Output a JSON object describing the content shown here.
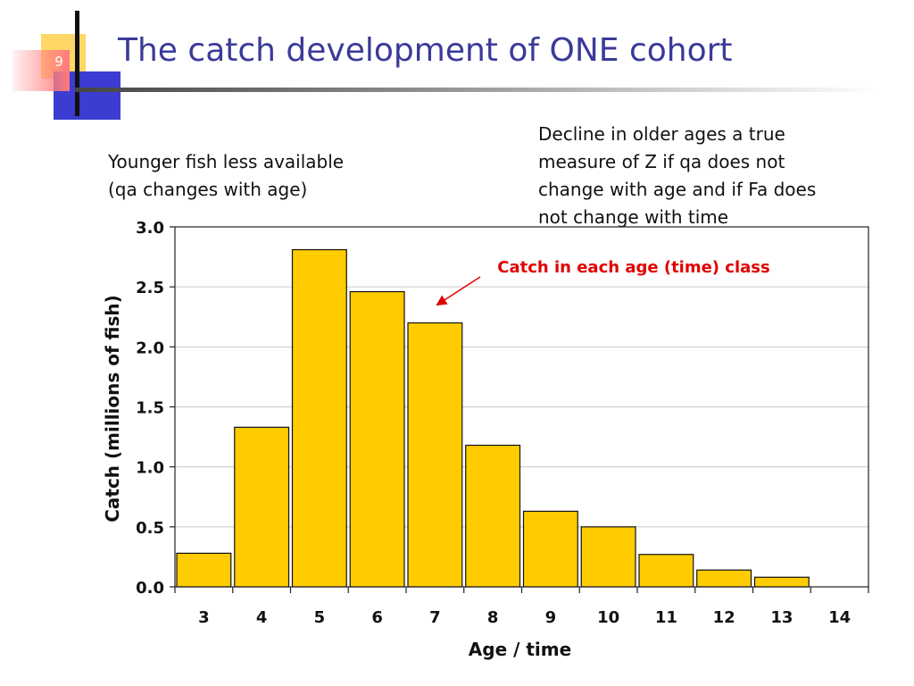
{
  "slide": {
    "number": "9",
    "title": "The catch development of ONE cohort"
  },
  "notes": {
    "left": [
      "Younger fish less available",
      "(qa changes with age)"
    ],
    "right": [
      "Decline in older ages a true",
      "measure of Z if qa does not",
      "change with age and if Fa does",
      "not change with time"
    ]
  },
  "colors": {
    "bar": "#FFCC00",
    "title": "#3a3a9a",
    "annotation": "#e00000"
  },
  "chart_data": {
    "type": "bar",
    "categories": [
      "3",
      "4",
      "5",
      "6",
      "7",
      "8",
      "9",
      "10",
      "11",
      "12",
      "13",
      "14"
    ],
    "values": [
      0.28,
      1.33,
      2.81,
      2.46,
      2.2,
      1.18,
      0.63,
      0.5,
      0.27,
      0.14,
      0.08,
      0
    ],
    "xlabel": "Age / time",
    "ylabel": "Catch (millions of fish)",
    "ylim": [
      0,
      3.0
    ],
    "yticks": [
      0.0,
      0.5,
      1.0,
      1.5,
      2.0,
      2.5,
      3.0
    ],
    "ytick_labels": [
      "0.0",
      "0.5",
      "1.0",
      "1.5",
      "2.0",
      "2.5",
      "3.0"
    ],
    "grid": true,
    "legend": "none",
    "annotation": {
      "text": "Catch in each age (time) class",
      "target_category": "7"
    }
  }
}
